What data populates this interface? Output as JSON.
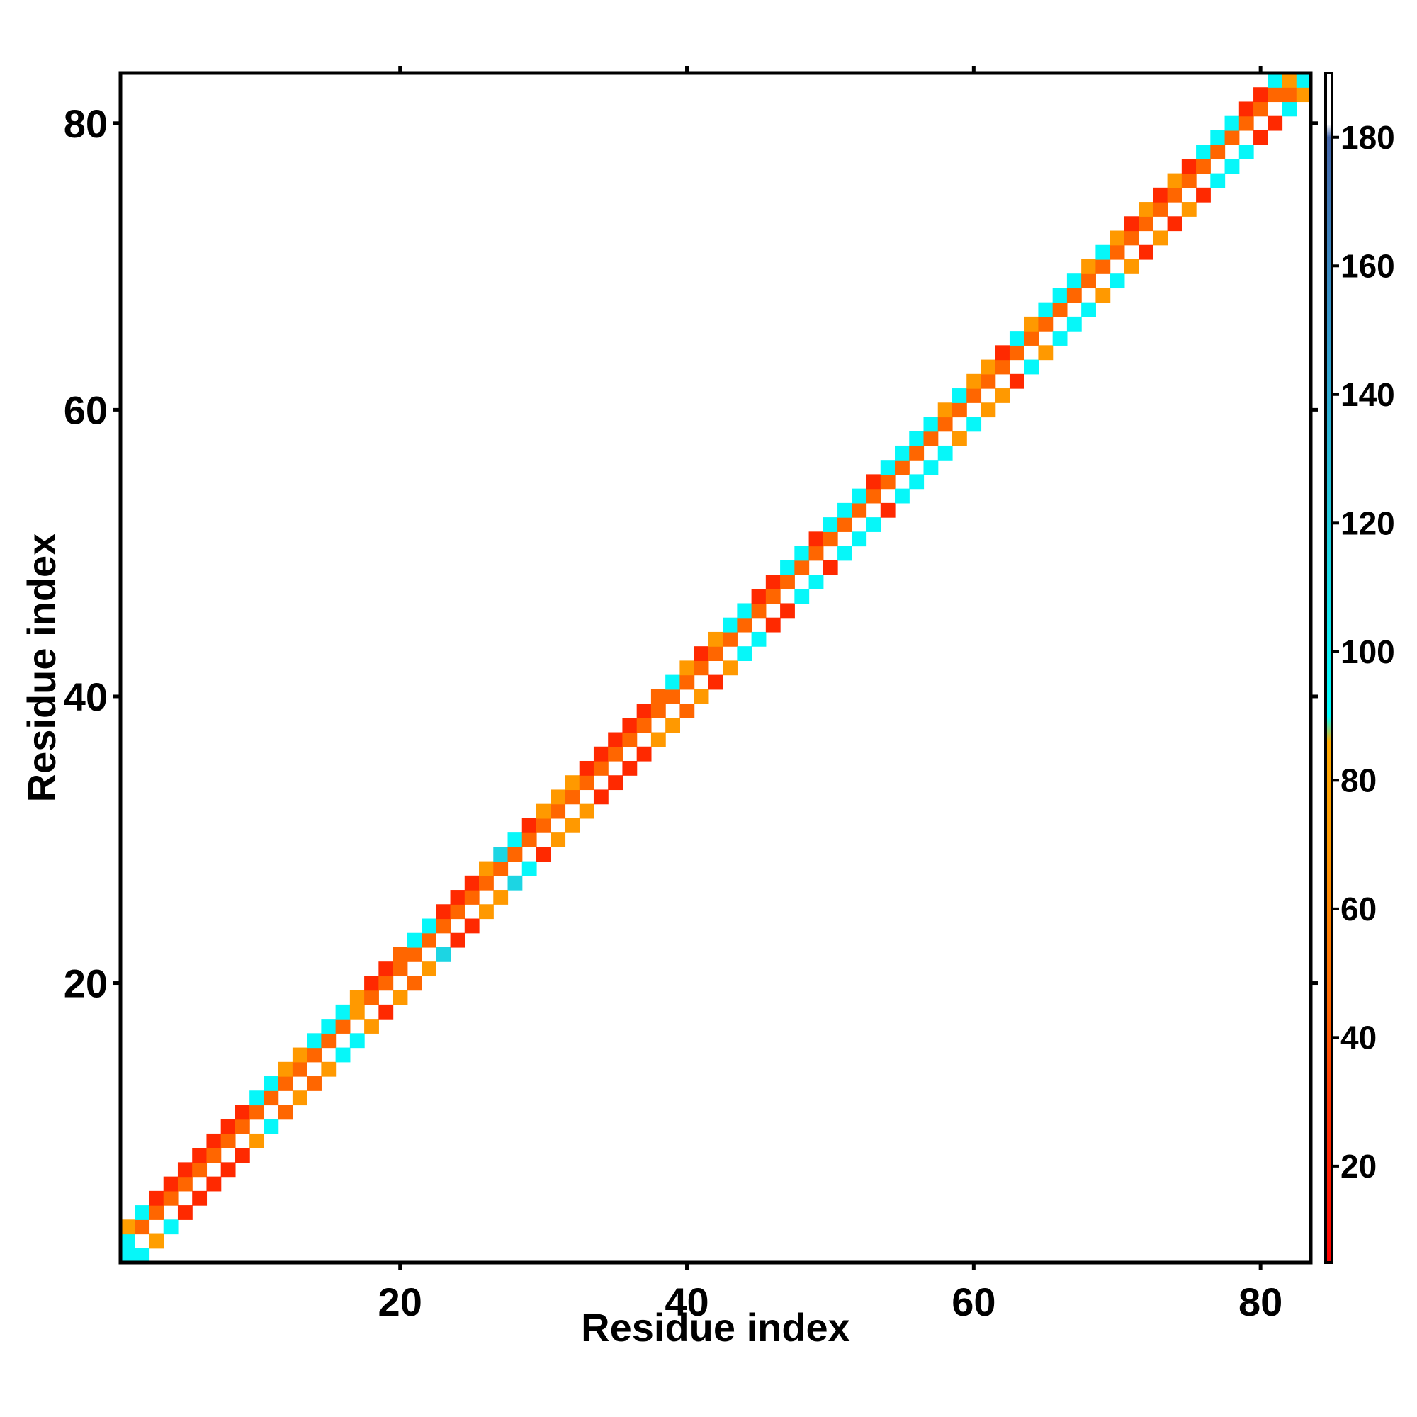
{
  "chart_data": {
    "type": "heatmap",
    "title": "",
    "xlabel": "Residue index",
    "ylabel": "Residue index",
    "xlim": [
      0.5,
      83.5
    ],
    "ylim": [
      0.5,
      83.5
    ],
    "x_ticks": [
      20,
      40,
      60,
      80
    ],
    "y_ticks": [
      20,
      40,
      60,
      80
    ],
    "colorbar": {
      "range": [
        5,
        190
      ],
      "ticks": [
        20,
        40,
        60,
        80,
        100,
        120,
        140,
        160,
        180
      ],
      "stops": [
        {
          "value": 5,
          "color": "#ff0000"
        },
        {
          "value": 30,
          "color": "#ff3300"
        },
        {
          "value": 45,
          "color": "#ff6600"
        },
        {
          "value": 70,
          "color": "#ff9900"
        },
        {
          "value": 86,
          "color": "#ffaa00"
        },
        {
          "value": 90,
          "color": "#00ffff"
        },
        {
          "value": 120,
          "color": "#22ccdd"
        },
        {
          "value": 150,
          "color": "#3399cc"
        },
        {
          "value": 180,
          "color": "#4466aa"
        },
        {
          "value": 182,
          "color": "#ffffff"
        },
        {
          "value": 190,
          "color": "#ffffff"
        }
      ]
    },
    "cells": [
      [
        1,
        1,
        95
      ],
      [
        1,
        2,
        95
      ],
      [
        1,
        3,
        75
      ],
      [
        2,
        1,
        95
      ],
      [
        2,
        3,
        45
      ],
      [
        2,
        4,
        95
      ],
      [
        3,
        2,
        75
      ],
      [
        3,
        4,
        45
      ],
      [
        3,
        5,
        25
      ],
      [
        4,
        3,
        95
      ],
      [
        4,
        5,
        45
      ],
      [
        4,
        6,
        25
      ],
      [
        5,
        4,
        25
      ],
      [
        5,
        6,
        45
      ],
      [
        5,
        7,
        25
      ],
      [
        6,
        5,
        25
      ],
      [
        6,
        7,
        45
      ],
      [
        6,
        8,
        25
      ],
      [
        7,
        6,
        25
      ],
      [
        7,
        8,
        45
      ],
      [
        7,
        9,
        25
      ],
      [
        8,
        7,
        25
      ],
      [
        8,
        9,
        45
      ],
      [
        8,
        10,
        25
      ],
      [
        9,
        8,
        25
      ],
      [
        9,
        10,
        45
      ],
      [
        9,
        11,
        25
      ],
      [
        10,
        9,
        70
      ],
      [
        10,
        11,
        45
      ],
      [
        10,
        12,
        95
      ],
      [
        11,
        10,
        95
      ],
      [
        11,
        12,
        45
      ],
      [
        11,
        13,
        95
      ],
      [
        12,
        11,
        45
      ],
      [
        12,
        13,
        45
      ],
      [
        12,
        14,
        70
      ],
      [
        13,
        12,
        70
      ],
      [
        13,
        14,
        45
      ],
      [
        13,
        15,
        70
      ],
      [
        14,
        13,
        45
      ],
      [
        14,
        15,
        45
      ],
      [
        14,
        16,
        95
      ],
      [
        15,
        14,
        70
      ],
      [
        15,
        16,
        45
      ],
      [
        15,
        17,
        95
      ],
      [
        16,
        15,
        95
      ],
      [
        16,
        17,
        45
      ],
      [
        16,
        18,
        95
      ],
      [
        17,
        16,
        95
      ],
      [
        17,
        18,
        70
      ],
      [
        17,
        19,
        70
      ],
      [
        18,
        17,
        70
      ],
      [
        18,
        19,
        45
      ],
      [
        18,
        20,
        25
      ],
      [
        19,
        18,
        25
      ],
      [
        19,
        20,
        45
      ],
      [
        19,
        21,
        25
      ],
      [
        20,
        19,
        70
      ],
      [
        20,
        21,
        45
      ],
      [
        20,
        22,
        45
      ],
      [
        21,
        20,
        45
      ],
      [
        21,
        22,
        45
      ],
      [
        21,
        23,
        95
      ],
      [
        22,
        21,
        70
      ],
      [
        22,
        23,
        45
      ],
      [
        22,
        24,
        95
      ],
      [
        23,
        22,
        115
      ],
      [
        23,
        24,
        45
      ],
      [
        23,
        25,
        25
      ],
      [
        24,
        23,
        25
      ],
      [
        24,
        25,
        45
      ],
      [
        24,
        26,
        25
      ],
      [
        25,
        24,
        25
      ],
      [
        25,
        26,
        45
      ],
      [
        25,
        27,
        25
      ],
      [
        26,
        25,
        70
      ],
      [
        26,
        27,
        45
      ],
      [
        26,
        28,
        70
      ],
      [
        27,
        26,
        70
      ],
      [
        27,
        28,
        45
      ],
      [
        27,
        29,
        115
      ],
      [
        28,
        27,
        115
      ],
      [
        28,
        29,
        45
      ],
      [
        28,
        30,
        95
      ],
      [
        29,
        28,
        95
      ],
      [
        29,
        30,
        45
      ],
      [
        29,
        31,
        25
      ],
      [
        30,
        29,
        25
      ],
      [
        30,
        31,
        45
      ],
      [
        30,
        32,
        70
      ],
      [
        31,
        30,
        70
      ],
      [
        31,
        32,
        45
      ],
      [
        31,
        33,
        70
      ],
      [
        32,
        31,
        70
      ],
      [
        32,
        33,
        45
      ],
      [
        32,
        34,
        70
      ],
      [
        33,
        32,
        70
      ],
      [
        33,
        34,
        45
      ],
      [
        33,
        35,
        25
      ],
      [
        34,
        33,
        25
      ],
      [
        34,
        35,
        45
      ],
      [
        34,
        36,
        25
      ],
      [
        35,
        34,
        25
      ],
      [
        35,
        36,
        45
      ],
      [
        35,
        37,
        25
      ],
      [
        36,
        35,
        25
      ],
      [
        36,
        37,
        45
      ],
      [
        36,
        38,
        25
      ],
      [
        37,
        36,
        25
      ],
      [
        37,
        38,
        45
      ],
      [
        37,
        39,
        25
      ],
      [
        38,
        37,
        70
      ],
      [
        38,
        39,
        45
      ],
      [
        38,
        40,
        45
      ],
      [
        39,
        38,
        70
      ],
      [
        39,
        40,
        45
      ],
      [
        39,
        41,
        95
      ],
      [
        40,
        39,
        45
      ],
      [
        40,
        41,
        45
      ],
      [
        40,
        42,
        70
      ],
      [
        41,
        40,
        70
      ],
      [
        41,
        42,
        45
      ],
      [
        41,
        43,
        25
      ],
      [
        42,
        41,
        25
      ],
      [
        42,
        43,
        45
      ],
      [
        42,
        44,
        70
      ],
      [
        43,
        42,
        70
      ],
      [
        43,
        44,
        45
      ],
      [
        43,
        45,
        95
      ],
      [
        44,
        43,
        95
      ],
      [
        44,
        45,
        45
      ],
      [
        44,
        46,
        95
      ],
      [
        45,
        44,
        95
      ],
      [
        45,
        46,
        45
      ],
      [
        45,
        47,
        25
      ],
      [
        46,
        45,
        25
      ],
      [
        46,
        47,
        45
      ],
      [
        46,
        48,
        25
      ],
      [
        47,
        46,
        25
      ],
      [
        47,
        48,
        45
      ],
      [
        47,
        49,
        95
      ],
      [
        48,
        47,
        95
      ],
      [
        48,
        49,
        45
      ],
      [
        48,
        50,
        95
      ],
      [
        49,
        48,
        95
      ],
      [
        49,
        50,
        45
      ],
      [
        49,
        51,
        25
      ],
      [
        50,
        49,
        25
      ],
      [
        50,
        51,
        45
      ],
      [
        50,
        52,
        95
      ],
      [
        51,
        50,
        95
      ],
      [
        51,
        52,
        45
      ],
      [
        51,
        53,
        95
      ],
      [
        52,
        51,
        95
      ],
      [
        52,
        53,
        45
      ],
      [
        52,
        54,
        95
      ],
      [
        53,
        52,
        95
      ],
      [
        53,
        54,
        45
      ],
      [
        53,
        55,
        25
      ],
      [
        54,
        53,
        25
      ],
      [
        54,
        55,
        45
      ],
      [
        54,
        56,
        95
      ],
      [
        55,
        54,
        95
      ],
      [
        55,
        56,
        45
      ],
      [
        55,
        57,
        95
      ],
      [
        56,
        55,
        95
      ],
      [
        56,
        57,
        45
      ],
      [
        56,
        58,
        95
      ],
      [
        57,
        56,
        95
      ],
      [
        57,
        58,
        45
      ],
      [
        57,
        59,
        95
      ],
      [
        58,
        57,
        95
      ],
      [
        58,
        59,
        45
      ],
      [
        58,
        60,
        70
      ],
      [
        59,
        58,
        70
      ],
      [
        59,
        60,
        45
      ],
      [
        59,
        61,
        95
      ],
      [
        60,
        59,
        95
      ],
      [
        60,
        61,
        45
      ],
      [
        60,
        62,
        70
      ],
      [
        61,
        60,
        70
      ],
      [
        61,
        62,
        45
      ],
      [
        61,
        63,
        70
      ],
      [
        62,
        61,
        70
      ],
      [
        62,
        63,
        45
      ],
      [
        62,
        64,
        25
      ],
      [
        63,
        62,
        25
      ],
      [
        63,
        64,
        45
      ],
      [
        63,
        65,
        95
      ],
      [
        64,
        63,
        95
      ],
      [
        64,
        65,
        45
      ],
      [
        64,
        66,
        70
      ],
      [
        65,
        64,
        70
      ],
      [
        65,
        66,
        45
      ],
      [
        65,
        67,
        95
      ],
      [
        66,
        65,
        95
      ],
      [
        66,
        67,
        45
      ],
      [
        66,
        68,
        95
      ],
      [
        67,
        66,
        95
      ],
      [
        67,
        68,
        45
      ],
      [
        67,
        69,
        95
      ],
      [
        68,
        67,
        95
      ],
      [
        68,
        69,
        45
      ],
      [
        68,
        70,
        70
      ],
      [
        69,
        68,
        70
      ],
      [
        69,
        70,
        45
      ],
      [
        69,
        71,
        95
      ],
      [
        70,
        69,
        95
      ],
      [
        70,
        71,
        45
      ],
      [
        70,
        72,
        70
      ],
      [
        71,
        70,
        70
      ],
      [
        71,
        72,
        45
      ],
      [
        71,
        73,
        25
      ],
      [
        72,
        71,
        25
      ],
      [
        72,
        73,
        45
      ],
      [
        72,
        74,
        70
      ],
      [
        73,
        72,
        70
      ],
      [
        73,
        74,
        45
      ],
      [
        73,
        75,
        25
      ],
      [
        74,
        73,
        25
      ],
      [
        74,
        75,
        45
      ],
      [
        74,
        76,
        70
      ],
      [
        75,
        74,
        70
      ],
      [
        75,
        76,
        45
      ],
      [
        75,
        77,
        25
      ],
      [
        76,
        75,
        25
      ],
      [
        76,
        77,
        45
      ],
      [
        76,
        78,
        95
      ],
      [
        77,
        76,
        95
      ],
      [
        77,
        78,
        45
      ],
      [
        77,
        79,
        95
      ],
      [
        78,
        77,
        95
      ],
      [
        78,
        79,
        45
      ],
      [
        78,
        80,
        95
      ],
      [
        79,
        78,
        95
      ],
      [
        79,
        80,
        45
      ],
      [
        79,
        81,
        25
      ],
      [
        80,
        79,
        25
      ],
      [
        80,
        81,
        45
      ],
      [
        80,
        82,
        25
      ],
      [
        81,
        80,
        25
      ],
      [
        81,
        82,
        45
      ],
      [
        81,
        83,
        95
      ],
      [
        82,
        81,
        95
      ],
      [
        82,
        82,
        45
      ],
      [
        82,
        83,
        70
      ],
      [
        83,
        82,
        70
      ],
      [
        83,
        83,
        95
      ]
    ]
  }
}
